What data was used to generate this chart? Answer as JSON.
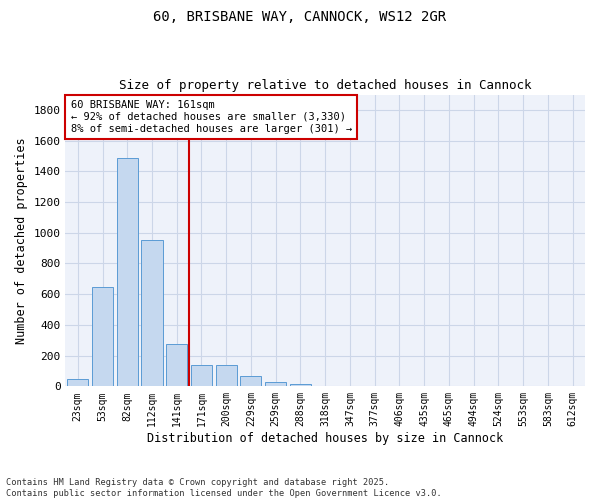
{
  "title_line1": "60, BRISBANE WAY, CANNOCK, WS12 2GR",
  "title_line2": "Size of property relative to detached houses in Cannock",
  "xlabel": "Distribution of detached houses by size in Cannock",
  "ylabel": "Number of detached properties",
  "bar_values": [
    45,
    650,
    1490,
    950,
    275,
    140,
    140,
    65,
    25,
    15,
    5,
    0,
    0,
    0,
    0,
    0,
    0,
    0,
    0,
    0,
    0
  ],
  "all_labels": [
    "23sqm",
    "53sqm",
    "82sqm",
    "112sqm",
    "141sqm",
    "171sqm",
    "200sqm",
    "229sqm",
    "259sqm",
    "288sqm",
    "318sqm",
    "347sqm",
    "377sqm",
    "406sqm",
    "435sqm",
    "465sqm",
    "494sqm",
    "524sqm",
    "553sqm",
    "583sqm",
    "612sqm"
  ],
  "bar_color": "#c5d8ef",
  "bar_edge_color": "#5b9bd5",
  "vline_position": 4.5,
  "vline_color": "#cc0000",
  "annotation_text": "60 BRISBANE WAY: 161sqm\n← 92% of detached houses are smaller (3,330)\n8% of semi-detached houses are larger (301) →",
  "annotation_box_color": "#ffffff",
  "annotation_box_edge_color": "#cc0000",
  "ylim": [
    0,
    1900
  ],
  "yticks": [
    0,
    200,
    400,
    600,
    800,
    1000,
    1200,
    1400,
    1600,
    1800
  ],
  "grid_color": "#ccd6e8",
  "bg_color": "#eef2fa",
  "footnote": "Contains HM Land Registry data © Crown copyright and database right 2025.\nContains public sector information licensed under the Open Government Licence v3.0."
}
